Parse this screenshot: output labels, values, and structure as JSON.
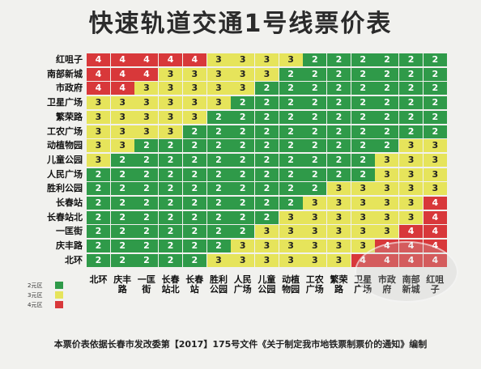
{
  "title": "快速轨道交通1号线票价表",
  "stations": [
    "红咀子",
    "南部新城",
    "市政府",
    "卫星广场",
    "繁荣路",
    "工农广场",
    "动植物园",
    "儿童公园",
    "人民广场",
    "胜利公园",
    "长春站",
    "长春站北",
    "一匡街",
    "庆丰路",
    "北环"
  ],
  "column_labels": [
    "北环",
    "庆丰路",
    "一匡街",
    "长春站北",
    "长春站",
    "胜利公园",
    "人民广场",
    "儿童公园",
    "动植物园",
    "工农广场",
    "繁荣路",
    "卫星广场",
    "市政府",
    "南部新城",
    "红咀子"
  ],
  "fares": [
    [
      4,
      4,
      4,
      4,
      4,
      3,
      3,
      3,
      3,
      2,
      2,
      2,
      2,
      2,
      2
    ],
    [
      4,
      4,
      4,
      3,
      3,
      3,
      3,
      3,
      2,
      2,
      2,
      2,
      2,
      2,
      2
    ],
    [
      4,
      4,
      3,
      3,
      3,
      3,
      3,
      2,
      2,
      2,
      2,
      2,
      2,
      2,
      2
    ],
    [
      3,
      3,
      3,
      3,
      3,
      3,
      2,
      2,
      2,
      2,
      2,
      2,
      2,
      2,
      2
    ],
    [
      3,
      3,
      3,
      3,
      3,
      2,
      2,
      2,
      2,
      2,
      2,
      2,
      2,
      2,
      2
    ],
    [
      3,
      3,
      3,
      3,
      2,
      2,
      2,
      2,
      2,
      2,
      2,
      2,
      2,
      2,
      2
    ],
    [
      3,
      3,
      2,
      2,
      2,
      2,
      2,
      2,
      2,
      2,
      2,
      2,
      2,
      3,
      3
    ],
    [
      3,
      2,
      2,
      2,
      2,
      2,
      2,
      2,
      2,
      2,
      2,
      2,
      3,
      3,
      3
    ],
    [
      2,
      2,
      2,
      2,
      2,
      2,
      2,
      2,
      2,
      2,
      2,
      2,
      3,
      3,
      3
    ],
    [
      2,
      2,
      2,
      2,
      2,
      2,
      2,
      2,
      2,
      2,
      3,
      3,
      3,
      3,
      3
    ],
    [
      2,
      2,
      2,
      2,
      2,
      2,
      2,
      2,
      2,
      3,
      3,
      3,
      3,
      3,
      4
    ],
    [
      2,
      2,
      2,
      2,
      2,
      2,
      2,
      2,
      3,
      3,
      3,
      3,
      3,
      3,
      4
    ],
    [
      2,
      2,
      2,
      2,
      2,
      2,
      2,
      3,
      3,
      3,
      3,
      3,
      3,
      4,
      4
    ],
    [
      2,
      2,
      2,
      2,
      2,
      2,
      3,
      3,
      3,
      3,
      3,
      3,
      4,
      4,
      4
    ],
    [
      2,
      2,
      2,
      2,
      2,
      3,
      3,
      3,
      3,
      3,
      3,
      4,
      4,
      4,
      4
    ]
  ],
  "legend": [
    {
      "label": "2元区",
      "color": "#2f9a49"
    },
    {
      "label": "3元区",
      "color": "#e6e45b"
    },
    {
      "label": "4元区",
      "color": "#d8383a"
    }
  ],
  "footer": "本票价表依据长春市发改委第【2017】175号文件《关于制定我市地铁票制票价的通知》编制"
}
